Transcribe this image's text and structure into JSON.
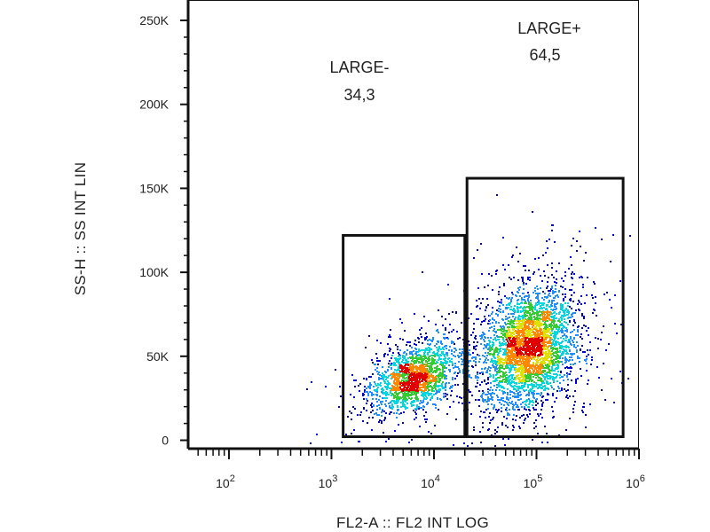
{
  "chart_data": {
    "type": "scatter",
    "subtype": "flow-cytometry-density-dot-plot",
    "xlabel": "FL2-A :: FL2 INT LOG",
    "ylabel": "SS-H :: SS INT LIN",
    "x_scale": "log",
    "xlim": [
      40,
      1000000
    ],
    "x_ticks": [
      {
        "value": 100,
        "base": "10",
        "exp": "2"
      },
      {
        "value": 1000,
        "base": "10",
        "exp": "3"
      },
      {
        "value": 10000,
        "base": "10",
        "exp": "4"
      },
      {
        "value": 100000,
        "base": "10",
        "exp": "5"
      },
      {
        "value": 1000000,
        "base": "10",
        "exp": "6"
      }
    ],
    "y_scale": "linear",
    "ylim": [
      -5000,
      262144
    ],
    "y_ticks": [
      {
        "value": 0,
        "label": "0"
      },
      {
        "value": 50000,
        "label": "50K"
      },
      {
        "value": 100000,
        "label": "100K"
      },
      {
        "value": 150000,
        "label": "150K"
      },
      {
        "value": 200000,
        "label": "200K"
      },
      {
        "value": 250000,
        "label": "250K"
      }
    ],
    "grid": false,
    "density_colors": [
      "#0000cc",
      "#1f8fff",
      "#00d8e0",
      "#33cc33",
      "#e0e000",
      "#ff8800",
      "#e00000"
    ],
    "gates": [
      {
        "name": "LARGE-",
        "value": "34,3",
        "x_range": [
          1300,
          20000
        ],
        "y_range": [
          0,
          122000
        ]
      },
      {
        "name": "LARGE+",
        "value": "64,5",
        "x_range": [
          21000,
          700000
        ],
        "y_range": [
          0,
          156000
        ]
      }
    ],
    "populations": [
      {
        "x_center_log10": 3.8,
        "y_center": 38000,
        "x_sd_log10": 0.2,
        "y_sd": 9000,
        "weight": 0.34
      },
      {
        "x_center_log10": 4.92,
        "y_center": 56000,
        "x_sd_log10": 0.22,
        "y_sd": 16000,
        "weight": 0.66
      }
    ]
  }
}
